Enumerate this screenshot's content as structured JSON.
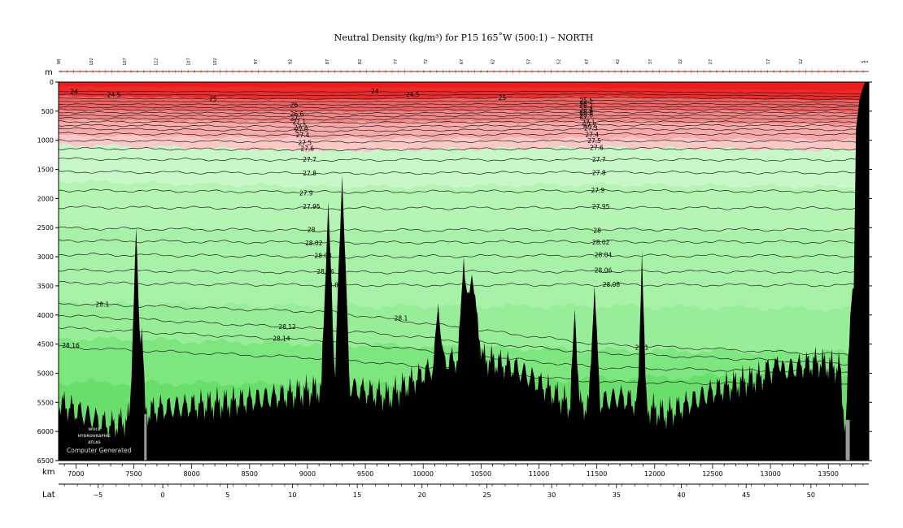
{
  "chart_data": {
    "type": "contour-section",
    "title": "Neutral Density (kg/m³) for P15 165˚W (500:1) – NORTH",
    "x": {
      "label": "km",
      "range": [
        6850,
        13850
      ],
      "ticks": [
        7000,
        7500,
        8000,
        8500,
        9000,
        9500,
        10000,
        10500,
        11000,
        11500,
        12000,
        12500,
        13000,
        13500
      ]
    },
    "y": {
      "label": "m",
      "range": [
        0,
        6500
      ],
      "inverted": true,
      "ticks": [
        0,
        500,
        1000,
        1500,
        2000,
        2500,
        3000,
        3500,
        4000,
        4500,
        5000,
        5500,
        6000,
        6500
      ]
    },
    "lat_axis": {
      "label": "Lat",
      "ticks": [
        {
          "label": "−5",
          "km": 7190
        },
        {
          "label": "0",
          "km": 7750
        },
        {
          "label": "5",
          "km": 8310
        },
        {
          "label": "10",
          "km": 8870
        },
        {
          "label": "15",
          "km": 9430
        },
        {
          "label": "20",
          "km": 9990
        },
        {
          "label": "25",
          "km": 10550
        },
        {
          "label": "30",
          "km": 11110
        },
        {
          "label": "35",
          "km": 11670
        },
        {
          "label": "40",
          "km": 12230
        },
        {
          "label": "45",
          "km": 12790
        },
        {
          "label": "50",
          "km": 13350
        }
      ]
    },
    "stations": [
      {
        "label": "98",
        "km": 6850
      },
      {
        "label": "102",
        "km": 7130
      },
      {
        "label": "107",
        "km": 7420
      },
      {
        "label": "112",
        "km": 7690
      },
      {
        "label": "107",
        "km": 7970
      },
      {
        "label": "102",
        "km": 8200
      },
      {
        "label": "97",
        "km": 8550
      },
      {
        "label": "92",
        "km": 8850
      },
      {
        "label": "87",
        "km": 9170
      },
      {
        "label": "82",
        "km": 9450
      },
      {
        "label": "77",
        "km": 9760
      },
      {
        "label": "72",
        "km": 10020
      },
      {
        "label": "67",
        "km": 10330
      },
      {
        "label": "62",
        "km": 10600
      },
      {
        "label": "57",
        "km": 10910
      },
      {
        "label": "52",
        "km": 11170
      },
      {
        "label": "47",
        "km": 11410
      },
      {
        "label": "42",
        "km": 11680
      },
      {
        "label": "37",
        "km": 11960
      },
      {
        "label": "32",
        "km": 12220
      },
      {
        "label": "27",
        "km": 12480
      },
      {
        "label": "17",
        "km": 12980
      },
      {
        "label": "12",
        "km": 13260
      },
      {
        "label": "5",
        "km": 13800
      },
      {
        "label": "1",
        "km": 13830
      }
    ],
    "bands": [
      {
        "id": "b0",
        "color": "#f02a2a",
        "d": [
          80,
          90,
          100,
          150
        ]
      },
      {
        "id": "b1",
        "color": "#f26262",
        "d": [
          240,
          300,
          250,
          320
        ]
      },
      {
        "id": "b2",
        "color": "#f58686",
        "d": [
          470,
          500,
          470,
          520
        ]
      },
      {
        "id": "b3",
        "color": "#f8aaaa",
        "d": [
          650,
          700,
          680,
          720
        ]
      },
      {
        "id": "b4",
        "color": "#fbc8c8",
        "d": [
          920,
          970,
          960,
          1000
        ]
      },
      {
        "id": "b5",
        "color": "#c8f8c8",
        "d": [
          1080,
          1180,
          1120,
          1180
        ]
      },
      {
        "id": "b6",
        "color": "#b4f5b4",
        "d": [
          1700,
          1800,
          1760,
          1800
        ]
      },
      {
        "id": "b7",
        "color": "#a8f2a8",
        "d": [
          2500,
          2550,
          2520,
          2560
        ]
      },
      {
        "id": "b8",
        "color": "#98ee98",
        "d": [
          3800,
          3850,
          3850,
          3900
        ]
      },
      {
        "id": "b9",
        "color": "#7ee67e",
        "d": [
          4400,
          4500,
          4600,
          4650
        ]
      },
      {
        "id": "b10",
        "color": "#6ade6a",
        "d": [
          5150,
          5200,
          5100,
          5000
        ]
      }
    ],
    "contours": [
      {
        "value": "24",
        "d": [
          160,
          170,
          160,
          200
        ],
        "labels": [
          6950,
          9550
        ]
      },
      {
        "value": "24.5",
        "d": [
          210,
          230,
          205,
          250
        ],
        "labels": [
          7270,
          9850
        ]
      },
      {
        "value": "25",
        "d": [
          280,
          290,
          265,
          300
        ],
        "labels": [
          8150,
          10650
        ]
      },
      {
        "value": "25.5",
        "d": [
          330,
          340,
          320,
          350
        ],
        "labels": [
          11350
        ]
      },
      {
        "value": "26",
        "d": [
          380,
          390,
          370,
          390
        ],
        "labels": [
          8850,
          11350
        ]
      },
      {
        "value": "26.2",
        "d": [
          430,
          440,
          420,
          430
        ],
        "labels": [
          11350
        ]
      },
      {
        "value": "26.4",
        "d": [
          475,
          490,
          470,
          480
        ],
        "labels": [
          11350
        ]
      },
      {
        "value": "26.6",
        "d": [
          520,
          540,
          520,
          530
        ],
        "labels": [
          8850,
          11350
        ]
      },
      {
        "value": "26.8",
        "d": [
          570,
          590,
          570,
          580
        ],
        "labels": [
          11350
        ]
      },
      {
        "value": "27",
        "d": [
          620,
          640,
          620,
          630
        ],
        "labels": [
          8850,
          11350
        ]
      },
      {
        "value": "27.1",
        "d": [
          680,
          700,
          680,
          690
        ],
        "labels": [
          8870,
          11370
        ]
      },
      {
        "value": "27.2",
        "d": [
          740,
          770,
          740,
          750
        ],
        "labels": [
          8880,
          11380
        ]
      },
      {
        "value": "27.3",
        "d": [
          800,
          840,
          810,
          820
        ],
        "labels": [
          8890,
          11390
        ]
      },
      {
        "value": "27.4",
        "d": [
          880,
          920,
          890,
          900
        ],
        "labels": [
          8900,
          11400
        ]
      },
      {
        "value": "27.5",
        "d": [
          1000,
          1030,
          1010,
          1020
        ],
        "labels": [
          8920,
          11420
        ]
      },
      {
        "value": "27.6",
        "d": [
          1140,
          1160,
          1140,
          1150
        ],
        "labels": [
          8940,
          11440
        ]
      },
      {
        "value": "27.7",
        "d": [
          1320,
          1340,
          1330,
          1340
        ],
        "labels": [
          8960,
          11460
        ]
      },
      {
        "value": "27.8",
        "d": [
          1540,
          1570,
          1550,
          1560
        ],
        "labels": [
          8960,
          11460
        ]
      },
      {
        "value": "27.9",
        "d": [
          1860,
          1890,
          1870,
          1880
        ],
        "labels": [
          8930,
          11450
        ]
      },
      {
        "value": "27.95",
        "d": [
          2150,
          2170,
          2160,
          2170
        ],
        "labels": [
          8960,
          11460
        ]
      },
      {
        "value": "28",
        "d": [
          2510,
          2550,
          2530,
          2540
        ],
        "labels": [
          9000,
          11470
        ]
      },
      {
        "value": "28.02",
        "d": [
          2720,
          2760,
          2740,
          2750
        ],
        "labels": [
          8980,
          11460
        ]
      },
      {
        "value": "28.04",
        "d": [
          2960,
          3000,
          2980,
          2990
        ],
        "labels": [
          9060,
          11480
        ]
      },
      {
        "value": "28.06",
        "d": [
          3230,
          3270,
          3250,
          3260
        ],
        "labels": [
          9080,
          11480
        ]
      },
      {
        "value": "28.08",
        "d": [
          3450,
          3490,
          3480,
          3490
        ],
        "labels": [
          9150,
          11550
        ]
      },
      {
        "value": "28.1",
        "d": [
          3800,
          3950,
          4500,
          4700
        ],
        "labels": [
          7170,
          9750,
          11830
        ]
      },
      {
        "value": "28.12",
        "d": [
          4000,
          4250,
          4650,
          4850
        ],
        "labels": [
          8750
        ]
      },
      {
        "value": "28.14",
        "d": [
          4220,
          4450,
          4900,
          5000
        ],
        "labels": [
          8700
        ]
      },
      {
        "value": "28.16",
        "d": [
          4550,
          4750,
          5150,
          5200
        ],
        "labels": [
          6880
        ]
      }
    ]
  },
  "watermark": {
    "lines": [
      "WOCE",
      "HYDROGRAPHIC",
      "ATLAS"
    ],
    "caption": "Computer Generated"
  }
}
